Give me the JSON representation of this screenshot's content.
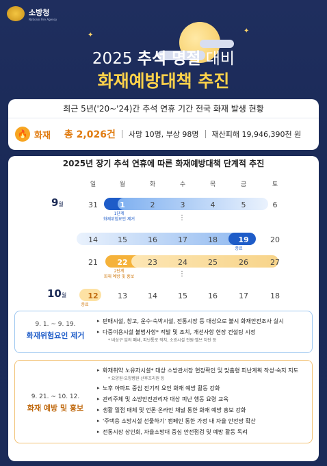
{
  "org": {
    "name": "소방청",
    "sub": "National Fire Agency"
  },
  "title": {
    "year": "2025",
    "bold1": "추석 명절",
    "rest": "대비",
    "line2": "화재예방대책 추진"
  },
  "stats": {
    "header": "최근 5년('20~'24)간 추석 연휴 기간 전국 화재 발생 현황",
    "label": "화재",
    "total": "총 2,026건",
    "casualty": "사망 10명, 부상 98명",
    "damage": "재산피해 19,946,390천 원"
  },
  "calendar": {
    "header": "2025년 장기 추석 연휴에 따른 화재예방대책 단계적 추진",
    "days": [
      "일",
      "월",
      "화",
      "수",
      "목",
      "금",
      "토"
    ],
    "months": [
      {
        "num": "9",
        "unit": "월"
      },
      {
        "num": "10",
        "unit": "월"
      }
    ],
    "weeks": [
      [
        "31",
        "1",
        "2",
        "3",
        "4",
        "5",
        "6"
      ],
      [
        "14",
        "15",
        "16",
        "17",
        "18",
        "19",
        "20"
      ],
      [
        "21",
        "22",
        "23",
        "24",
        "25",
        "26",
        "27"
      ],
      [
        "12",
        "13",
        "14",
        "15",
        "16",
        "17",
        "18"
      ]
    ],
    "notes": {
      "s1": "1단계\n화재위험요인 제거",
      "e1": "종료",
      "s2": "2단계\n화재 예방 및 홍보",
      "e2": "종료"
    },
    "phase_colors": {
      "blue": "#1e5cc8",
      "orange": "#f5b23a"
    }
  },
  "phase1": {
    "dates": "9. 1. ~ 9. 19.",
    "name": "화재위험요인 제거",
    "items": [
      "판매시설, 창고, 운수·숙박시설, 전통시장 등 대상으로 불시 화재안전조사 실시",
      "다중이용시설 불법사항* 적발 및 조치, 개선사항 현장 컨설팅 시정"
    ],
    "sub": "* 비상구 임의 폐쇄, 피난통로 적치, 소방시설 전원·밸브 차단 등"
  },
  "phase2": {
    "dates": "9. 21. ~ 10. 12.",
    "name": "화재 예방 및 홍보",
    "items": [
      "화재취약 노유자시설* 대상 소방관서장 현장확인 및 맞춤형 피난계획 작성·숙지 지도",
      "노후 아파트 중심 전기적 요인 화재 예방 활동 강화",
      "관리주체 및 소방안전관리자 대상 피난 행동 요령 교육",
      "생활 밀접 매체 및 언론·온라인 채널 통한 화재 예방 홍보 강화",
      "'주택용 소방시설 선물하기' 캠페인 통한 가정 내 자율 안전망 확산",
      "전통시장 상인회, 자율소방대 중심 안전점검 및 예방 활동 독려"
    ],
    "sub": "* 요양원·요양병원·산후조리원 등"
  }
}
